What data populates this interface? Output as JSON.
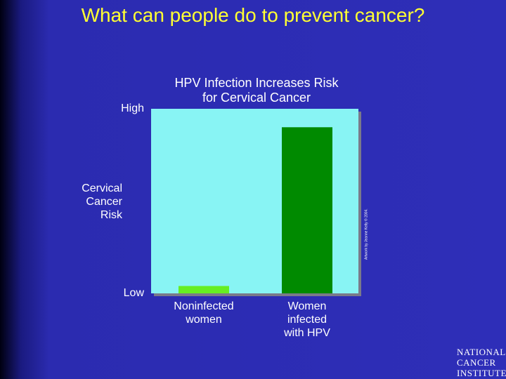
{
  "slide_title": "What can people do to prevent cancer?",
  "chart_data": {
    "type": "bar",
    "title": "HPV Infection Increases Risk for Cervical Cancer",
    "y_label": "Cervical Cancer Risk",
    "categories": [
      "Noninfected women",
      "Women infected with HPV"
    ],
    "values": [
      4,
      90
    ],
    "colors": [
      "#66ee22",
      "#008a00"
    ],
    "ylim": [
      0,
      100
    ],
    "yticks": [
      {
        "value": 0,
        "label": "Low"
      },
      {
        "value": 100,
        "label": "High"
      }
    ],
    "credit": "Artwork by Jeanne Kelly © 2004."
  },
  "logo": {
    "lines": [
      "NATIONAL",
      "CANCER",
      "INSTITUTE"
    ]
  }
}
